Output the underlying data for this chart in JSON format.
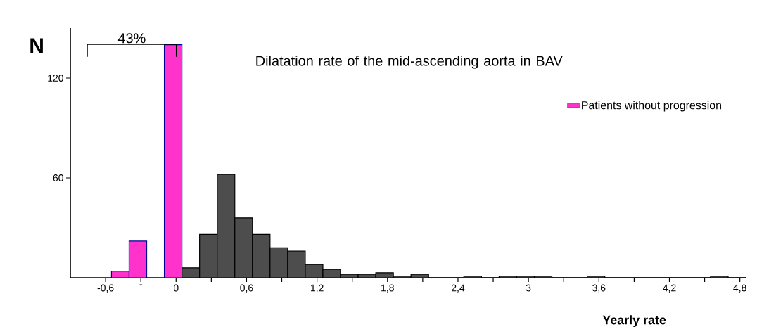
{
  "chart_data": {
    "type": "histogram",
    "title": "Dilatation rate of the mid-ascending aorta in BAV",
    "xlabel": "Yearly rate",
    "ylabel": "N",
    "annotations": [
      "43%"
    ],
    "bins": [
      -0.55,
      -0.4,
      -0.25,
      -0.1,
      0.05,
      0.2,
      0.35,
      0.5,
      0.65,
      0.8,
      0.95,
      1.1,
      1.25,
      1.4,
      1.55,
      1.7,
      1.85,
      2.0,
      2.15,
      2.3,
      2.45,
      2.6,
      2.75,
      2.9,
      3.05,
      3.2,
      3.35,
      3.5,
      3.65,
      3.8,
      3.95,
      4.1,
      4.25,
      4.4,
      4.55,
      4.7,
      4.85
    ],
    "series": [
      {
        "name": "Patients without progression",
        "color": "#ff33cc",
        "values": [
          4,
          22,
          null,
          140,
          null,
          null,
          null,
          null,
          null,
          null,
          null,
          null,
          null,
          null,
          null,
          null,
          null,
          null,
          null,
          null,
          null,
          null,
          null,
          null,
          null,
          null,
          null,
          null,
          null,
          null,
          null,
          null,
          null,
          null,
          null,
          null
        ]
      },
      {
        "color": "#4d4d4d",
        "values": [
          null,
          null,
          null,
          null,
          6,
          26,
          62,
          36,
          26,
          18,
          16,
          8,
          5,
          2,
          2,
          3,
          1,
          2,
          0,
          0,
          1,
          0,
          1,
          1,
          1,
          0,
          0,
          1,
          0,
          0,
          0,
          0,
          0,
          0,
          1,
          0
        ]
      }
    ],
    "xlim": [
      -0.9,
      4.85
    ],
    "ylim": [
      0,
      150
    ],
    "xticks": [
      {
        "value": -0.6,
        "label": "-0,6"
      },
      {
        "value": -0.3,
        "label": "-"
      },
      {
        "value": 0,
        "label": "0"
      },
      {
        "value": 0.3,
        "label": null
      },
      {
        "value": 0.6,
        "label": "0,6"
      },
      {
        "value": 0.9,
        "label": null
      },
      {
        "value": 1.2,
        "label": "1,2"
      },
      {
        "value": 1.5,
        "label": null
      },
      {
        "value": 1.8,
        "label": "1,8"
      },
      {
        "value": 2.1,
        "label": null
      },
      {
        "value": 2.4,
        "label": "2,4"
      },
      {
        "value": 2.7,
        "label": null
      },
      {
        "value": 3,
        "label": "3"
      },
      {
        "value": 3.3,
        "label": null
      },
      {
        "value": 3.6,
        "label": "3,6"
      },
      {
        "value": 3.9,
        "label": null
      },
      {
        "value": 4.2,
        "label": "4,2"
      },
      {
        "value": 4.5,
        "label": null
      },
      {
        "value": 4.8,
        "label": "4,8"
      }
    ],
    "yticks": [
      60,
      120
    ],
    "legend": "top right",
    "grid": false
  }
}
